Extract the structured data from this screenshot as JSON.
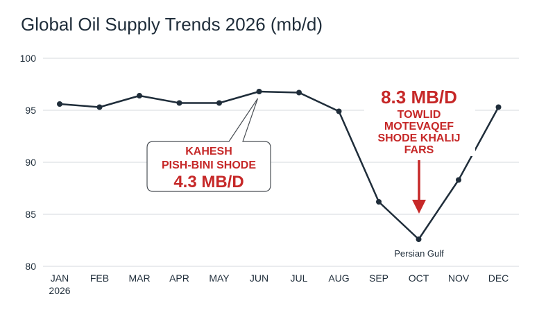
{
  "chart_data": {
    "type": "line",
    "title": "Global Oil Supply Trends 2026 (mb/d)",
    "xlabel": "",
    "ylabel": "",
    "x": [
      "JAN",
      "FEB",
      "MAR",
      "APR",
      "MAY",
      "JUN",
      "JUL",
      "AUG",
      "SEP",
      "OCT",
      "NOV",
      "DEC"
    ],
    "x_sublabel": "2026",
    "y_ticks": [
      80,
      85,
      90,
      95,
      100
    ],
    "ylim": [
      80,
      100
    ],
    "grid": true,
    "series": [
      {
        "values": [
          95.6,
          95.3,
          96.4,
          95.7,
          95.7,
          96.8,
          96.7,
          94.9,
          86.2,
          82.6,
          88.3,
          95.3
        ]
      }
    ],
    "annotations": {
      "callout_left": {
        "target": "JUN",
        "lines": [
          "KAHESH",
          "PISH-BINI SHODE"
        ],
        "value": "4.3 MB/D"
      },
      "callout_right": {
        "target": "OCT",
        "value": "8.3 MB/D",
        "lines": [
          "TOWLID",
          "MOTEVAQEF",
          "SHODE KHALIJ",
          "FARS"
        ]
      },
      "point_label": {
        "target": "OCT",
        "text": "Persian Gulf"
      }
    }
  },
  "colors": {
    "line": "#1f2d3a",
    "grid": "#d5d9de",
    "accent": "#c62828"
  }
}
